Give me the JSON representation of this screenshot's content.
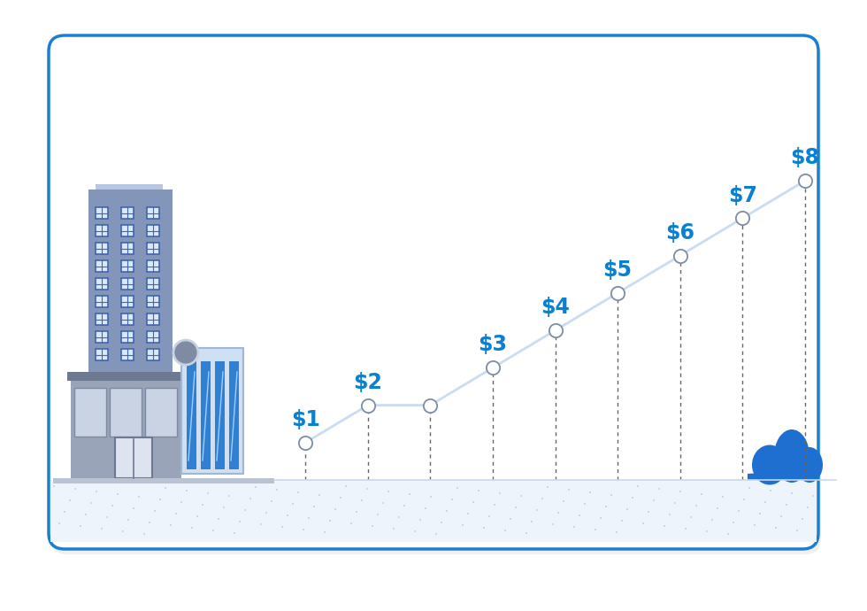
{
  "chart_data": {
    "type": "line",
    "values": [
      1,
      2,
      2,
      3,
      4,
      5,
      6,
      7,
      8
    ],
    "value_labels": [
      "$1",
      "$2",
      null,
      "$3",
      "$4",
      "$5",
      "$6",
      "$7",
      "$8"
    ],
    "data_labels": true,
    "ylim": [
      0,
      9
    ],
    "tick_labels": false,
    "color": "#c9dcf2",
    "marker": "circle",
    "line_style": "solid"
  }
}
